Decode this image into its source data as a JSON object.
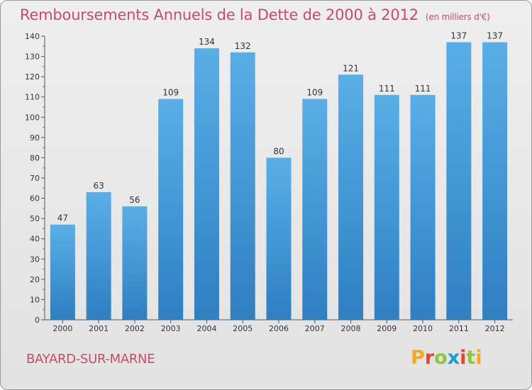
{
  "header": {
    "title": "Remboursements Annuels de la Dette de 2000 à 2012",
    "unit": "(en milliers d'€)"
  },
  "footer": {
    "place": "BAYARD-SUR-MARNE",
    "logo": "Proxiti",
    "logo_colors": [
      "#f5a623",
      "#e8452c",
      "#8dc63f",
      "#1e9bd7",
      "#e8452c",
      "#8dc63f",
      "#f5a623"
    ]
  },
  "colors": {
    "bar_top": "#5aaee8",
    "bar_bottom": "#2f7fc1",
    "text": "#333333",
    "title": "#c84b6a"
  },
  "chart_data": {
    "type": "bar",
    "title": "Remboursements Annuels de la Dette de 2000 à 2012",
    "subtitle": "(en milliers d'€)",
    "xlabel": "",
    "ylabel": "",
    "categories": [
      "2000",
      "2001",
      "2002",
      "2003",
      "2004",
      "2005",
      "2006",
      "2007",
      "2008",
      "2009",
      "2010",
      "2011",
      "2012"
    ],
    "values": [
      47,
      63,
      56,
      109,
      134,
      132,
      80,
      109,
      121,
      111,
      111,
      137,
      137
    ],
    "ylim": [
      0,
      140
    ],
    "yticks": [
      0,
      10,
      20,
      30,
      40,
      50,
      60,
      70,
      80,
      90,
      100,
      110,
      120,
      130,
      140
    ],
    "grid": false,
    "legend": "none",
    "data_labels": true
  }
}
